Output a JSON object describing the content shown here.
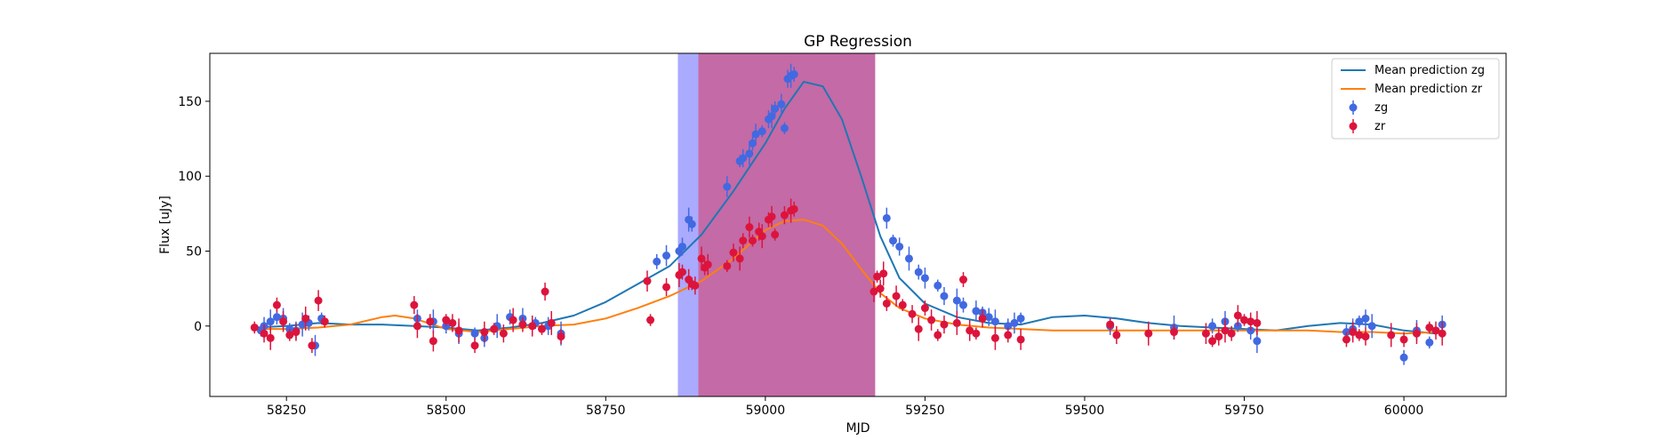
{
  "chart_data": {
    "type": "scatter",
    "title": "GP Regression",
    "xlabel": "MJD",
    "ylabel": "Flux [uJy]",
    "xlim": [
      58130,
      60160
    ],
    "ylim": [
      -47,
      182
    ],
    "x_ticks": [
      58250,
      58500,
      58750,
      59000,
      59250,
      59500,
      59750,
      60000
    ],
    "y_ticks": [
      0,
      50,
      100,
      150
    ],
    "x_tick_labels": [
      "58250",
      "58500",
      "58750",
      "59000",
      "59250",
      "59500",
      "59750",
      "60000"
    ],
    "y_tick_labels": [
      "0",
      "50",
      "100",
      "150"
    ],
    "grid": false,
    "legend_position": "top-right",
    "spans": [
      {
        "x0": 58863,
        "x1": 58895,
        "color": "#aaaaff"
      },
      {
        "x0": 58895,
        "x1": 59172,
        "color": "#c46aa6"
      }
    ],
    "series": [
      {
        "name": "Mean prediction zg",
        "kind": "line",
        "color": "#1f77b4",
        "x": [
          58200,
          58250,
          58300,
          58350,
          58400,
          58450,
          58500,
          58550,
          58600,
          58650,
          58700,
          58750,
          58800,
          58850,
          58900,
          58950,
          59000,
          59030,
          59060,
          59090,
          59120,
          59150,
          59180,
          59210,
          59250,
          59300,
          59350,
          59400,
          59450,
          59500,
          59550,
          59600,
          59650,
          59700,
          59750,
          59800,
          59850,
          59900,
          59950,
          60000,
          60050,
          60060
        ],
        "y": [
          -1,
          0,
          2,
          1,
          1,
          0,
          -1,
          -3,
          -1,
          2,
          7,
          16,
          28,
          40,
          61,
          90,
          122,
          145,
          163,
          160,
          138,
          100,
          60,
          32,
          15,
          6,
          2,
          1,
          6,
          7,
          5,
          2,
          0,
          -1,
          -2,
          -3,
          0,
          2,
          1,
          -3,
          -5,
          -4
        ]
      },
      {
        "name": "Mean prediction zr",
        "kind": "line",
        "color": "#ff7f0e",
        "x": [
          58200,
          58250,
          58300,
          58350,
          58400,
          58420,
          58450,
          58500,
          58550,
          58600,
          58650,
          58700,
          58750,
          58800,
          58850,
          58900,
          58950,
          59000,
          59030,
          59060,
          59090,
          59120,
          59150,
          59180,
          59210,
          59250,
          59300,
          59350,
          59400,
          59450,
          59500,
          59550,
          59600,
          59650,
          59700,
          59750,
          59800,
          59850,
          59900,
          59950,
          60000,
          60050,
          60060
        ],
        "y": [
          -2,
          -2,
          -1,
          1,
          6,
          7,
          5,
          -2,
          -4,
          -2,
          0,
          1,
          5,
          12,
          20,
          30,
          45,
          64,
          70,
          71,
          67,
          55,
          38,
          22,
          12,
          5,
          1,
          -1,
          -2,
          -3,
          -3,
          -3,
          -3,
          -3,
          -3,
          -3,
          -3,
          -3,
          -4,
          -4,
          -5,
          -4,
          -3
        ]
      },
      {
        "name": "zg",
        "kind": "errorbar",
        "color": "#4169e1",
        "x": [
          58210,
          58215,
          58225,
          58235,
          58245,
          58255,
          58265,
          58275,
          58285,
          58295,
          58305,
          58455,
          58480,
          58500,
          58520,
          58545,
          58560,
          58580,
          58600,
          58620,
          58640,
          58660,
          58680,
          58830,
          58845,
          58865,
          58870,
          58880,
          58885,
          58940,
          58960,
          58965,
          58975,
          58980,
          58985,
          58995,
          59005,
          59010,
          59015,
          59025,
          59030,
          59035,
          59040,
          59045,
          59190,
          59200,
          59210,
          59225,
          59240,
          59250,
          59270,
          59280,
          59300,
          59310,
          59330,
          59340,
          59350,
          59360,
          59380,
          59390,
          59400,
          59540,
          59640,
          59700,
          59720,
          59740,
          59760,
          59770,
          59910,
          59920,
          59930,
          59940,
          59950,
          60000,
          60020,
          60040,
          60060
        ],
        "y": [
          -3,
          0,
          3,
          6,
          5,
          -2,
          -3,
          1,
          2,
          -13,
          5,
          5,
          3,
          0,
          -5,
          -5,
          -8,
          0,
          6,
          5,
          2,
          0,
          -5,
          43,
          47,
          50,
          53,
          71,
          68,
          93,
          110,
          112,
          115,
          122,
          128,
          130,
          138,
          140,
          145,
          148,
          132,
          165,
          167,
          168,
          72,
          57,
          53,
          45,
          36,
          32,
          27,
          20,
          17,
          14,
          10,
          9,
          6,
          3,
          0,
          2,
          5,
          0,
          -1,
          0,
          3,
          0,
          -3,
          -10,
          -4,
          -2,
          3,
          5,
          0,
          -21,
          -3,
          -11,
          1
        ]
      },
      {
        "name": "zr",
        "kind": "errorbar",
        "color": "#dc143c",
        "x": [
          58200,
          58215,
          58225,
          58235,
          58245,
          58255,
          58265,
          58280,
          58290,
          58300,
          58310,
          58450,
          58455,
          58475,
          58480,
          58500,
          58510,
          58520,
          58545,
          58560,
          58575,
          58590,
          58605,
          58620,
          58635,
          58650,
          58655,
          58665,
          58680,
          58815,
          58820,
          58845,
          58865,
          58870,
          58880,
          58885,
          58890,
          58900,
          58905,
          58910,
          58940,
          58950,
          58960,
          58965,
          58975,
          58980,
          58990,
          58995,
          59005,
          59010,
          59015,
          59030,
          59040,
          59045,
          59170,
          59175,
          59180,
          59185,
          59190,
          59205,
          59215,
          59230,
          59240,
          59250,
          59260,
          59270,
          59280,
          59300,
          59310,
          59320,
          59330,
          59340,
          59360,
          59380,
          59400,
          59540,
          59550,
          59600,
          59640,
          59690,
          59700,
          59710,
          59720,
          59730,
          59740,
          59750,
          59760,
          59770,
          59910,
          59920,
          59930,
          59940,
          59980,
          60000,
          60020,
          60040,
          60050,
          60060
        ],
        "y": [
          -1,
          -5,
          -8,
          14,
          3,
          -6,
          -4,
          5,
          -13,
          17,
          3,
          14,
          0,
          3,
          -10,
          4,
          2,
          -3,
          -13,
          -4,
          -2,
          -5,
          4,
          1,
          0,
          -2,
          23,
          2,
          -7,
          30,
          4,
          26,
          34,
          36,
          31,
          28,
          27,
          45,
          39,
          41,
          40,
          49,
          45,
          57,
          66,
          57,
          63,
          60,
          71,
          73,
          61,
          74,
          77,
          78,
          23,
          33,
          25,
          35,
          15,
          20,
          14,
          8,
          -2,
          12,
          4,
          -6,
          1,
          2,
          31,
          -3,
          -5,
          5,
          -8,
          -6,
          -9,
          1,
          -6,
          -5,
          -4,
          -5,
          -10,
          -7,
          -3,
          -5,
          7,
          4,
          3,
          2,
          -9,
          -4,
          -6,
          -7,
          -6,
          -9,
          -5,
          -1,
          -3,
          -5
        ]
      }
    ]
  }
}
